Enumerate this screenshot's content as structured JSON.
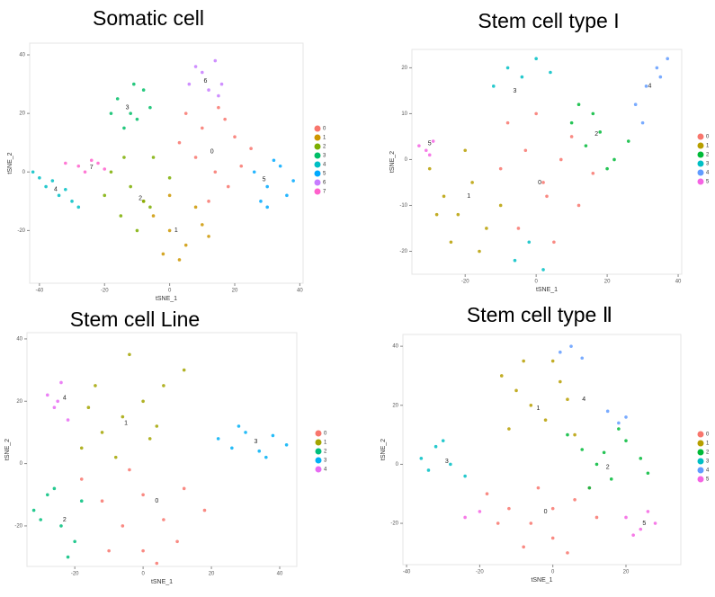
{
  "chart_data": [
    {
      "type": "scatter",
      "title": "Somatic cell",
      "x_label": "tSNE_1",
      "y_label": "tSNE_2",
      "xlim": [
        -43,
        41
      ],
      "ylim": [
        -38,
        44
      ],
      "xticks": [
        -40,
        -20,
        0,
        20,
        40
      ],
      "yticks": [
        -20,
        0,
        20,
        40
      ],
      "legend": "right",
      "series": [
        {
          "name": "0",
          "color": "#F8766D",
          "x": [
            5,
            10,
            15,
            20,
            25,
            8,
            14,
            18,
            22,
            3,
            12,
            17
          ],
          "y": [
            20,
            15,
            22,
            12,
            8,
            5,
            0,
            -5,
            2,
            10,
            -10,
            18
          ]
        },
        {
          "name": "1",
          "color": "#CD9600",
          "x": [
            -5,
            0,
            5,
            10,
            -8,
            3,
            8,
            -2,
            12,
            0
          ],
          "y": [
            -15,
            -20,
            -25,
            -18,
            -10,
            -30,
            -12,
            -28,
            -22,
            -8
          ]
        },
        {
          "name": "2",
          "color": "#7CAE00",
          "x": [
            -18,
            -12,
            -8,
            -15,
            -5,
            -10,
            -20,
            0,
            -14,
            -6
          ],
          "y": [
            0,
            -5,
            -10,
            -15,
            5,
            -20,
            -8,
            -2,
            5,
            -12
          ]
        },
        {
          "name": "3",
          "color": "#00BE67",
          "x": [
            -16,
            -12,
            -8,
            -14,
            -10,
            -6,
            -18,
            -11
          ],
          "y": [
            25,
            20,
            28,
            15,
            18,
            22,
            20,
            30
          ]
        },
        {
          "name": "4",
          "color": "#00BFC4",
          "x": [
            -42,
            -38,
            -34,
            -30,
            -36,
            -40,
            -32,
            -28
          ],
          "y": [
            0,
            -5,
            -8,
            -10,
            -3,
            -2,
            -6,
            -12
          ]
        },
        {
          "name": "5",
          "color": "#00A9FF",
          "x": [
            26,
            30,
            34,
            36,
            28,
            32,
            38,
            30
          ],
          "y": [
            0,
            -5,
            2,
            -8,
            -10,
            4,
            -3,
            -12
          ]
        },
        {
          "name": "6",
          "color": "#C77CFF",
          "x": [
            6,
            10,
            14,
            16,
            12,
            8,
            15
          ],
          "y": [
            30,
            34,
            38,
            30,
            28,
            36,
            26
          ]
        },
        {
          "name": "7",
          "color": "#FF61CC",
          "x": [
            -32,
            -28,
            -24,
            -20,
            -26,
            -22
          ],
          "y": [
            3,
            2,
            4,
            1,
            0,
            3
          ]
        }
      ],
      "annotations": [
        {
          "text": "0",
          "x": 13,
          "y": 7
        },
        {
          "text": "1",
          "x": 2,
          "y": -20
        },
        {
          "text": "2",
          "x": -9,
          "y": -9
        },
        {
          "text": "3",
          "x": -13,
          "y": 22
        },
        {
          "text": "4",
          "x": -35,
          "y": -6
        },
        {
          "text": "5",
          "x": 29,
          "y": -2.5
        },
        {
          "text": "6",
          "x": 11,
          "y": 31
        },
        {
          "text": "7",
          "x": -24,
          "y": 1.5
        }
      ]
    },
    {
      "type": "scatter",
      "title": "Stem cell type I",
      "x_label": "tSNE_1",
      "y_label": "tSNE_2",
      "xlim": [
        -35,
        41
      ],
      "ylim": [
        -25,
        24
      ],
      "xticks": [
        -20,
        0,
        20,
        40
      ],
      "yticks": [
        -20,
        -10,
        0,
        10,
        20
      ],
      "legend": "right",
      "series": [
        {
          "name": "0",
          "color": "#F8766D",
          "x": [
            -8,
            -3,
            2,
            7,
            12,
            16,
            -5,
            0,
            5,
            10,
            -10,
            3
          ],
          "y": [
            8,
            2,
            -5,
            0,
            -10,
            -3,
            -15,
            10,
            -18,
            5,
            -2,
            -8
          ]
        },
        {
          "name": "1",
          "color": "#B79F00",
          "x": [
            -30,
            -26,
            -22,
            -18,
            -14,
            -10,
            -24,
            -20,
            -16,
            -28
          ],
          "y": [
            -2,
            -8,
            -12,
            -5,
            -15,
            -10,
            -18,
            2,
            -20,
            -12
          ]
        },
        {
          "name": "2",
          "color": "#00BA38",
          "x": [
            10,
            14,
            18,
            22,
            26,
            16,
            20,
            12
          ],
          "y": [
            8,
            3,
            6,
            0,
            4,
            10,
            -2,
            12
          ]
        },
        {
          "name": "3",
          "color": "#00BFC4",
          "x": [
            -12,
            -8,
            -4,
            0,
            4,
            -6,
            -2,
            2
          ],
          "y": [
            16,
            20,
            18,
            22,
            19,
            -22,
            -18,
            -24
          ]
        },
        {
          "name": "4",
          "color": "#619CFF",
          "x": [
            28,
            31,
            34,
            37,
            30,
            35
          ],
          "y": [
            12,
            16,
            20,
            22,
            8,
            18
          ]
        },
        {
          "name": "5",
          "color": "#F564E3",
          "x": [
            -33,
            -31,
            -29,
            -30
          ],
          "y": [
            3,
            2,
            4,
            1
          ]
        }
      ],
      "annotations": [
        {
          "text": "0",
          "x": 1,
          "y": -5
        },
        {
          "text": "1",
          "x": -19,
          "y": -8
        },
        {
          "text": "2",
          "x": 17,
          "y": 5.5
        },
        {
          "text": "3",
          "x": -6,
          "y": 15
        },
        {
          "text": "4",
          "x": 32,
          "y": 16
        },
        {
          "text": "5",
          "x": -30,
          "y": 3.5
        }
      ]
    },
    {
      "type": "scatter",
      "title": "Stem cell Line",
      "x_label": "tSNE_1",
      "y_label": "tSNE_2",
      "xlim": [
        -34,
        45
      ],
      "ylim": [
        -33,
        42
      ],
      "xticks": [
        -20,
        0,
        20,
        40
      ],
      "yticks": [
        -20,
        0,
        20,
        40
      ],
      "legend": "right",
      "series": [
        {
          "name": "0",
          "color": "#F8766D",
          "x": [
            -18,
            -12,
            -6,
            0,
            6,
            12,
            18,
            -10,
            0,
            10,
            -4,
            4
          ],
          "y": [
            -5,
            -12,
            -20,
            -28,
            -18,
            -8,
            -15,
            -28,
            -10,
            -25,
            -2,
            -32
          ]
        },
        {
          "name": "1",
          "color": "#A3A500",
          "x": [
            -18,
            -12,
            -6,
            0,
            6,
            12,
            -14,
            -4,
            4,
            -8,
            2,
            -16
          ],
          "y": [
            5,
            10,
            15,
            20,
            25,
            30,
            25,
            35,
            12,
            2,
            8,
            18
          ]
        },
        {
          "name": "2",
          "color": "#00BF7D",
          "x": [
            -32,
            -28,
            -24,
            -20,
            -26,
            -22,
            -30,
            -18
          ],
          "y": [
            -15,
            -10,
            -20,
            -25,
            -8,
            -30,
            -18,
            -12
          ]
        },
        {
          "name": "3",
          "color": "#00B0F6",
          "x": [
            22,
            26,
            30,
            34,
            38,
            42,
            28,
            36
          ],
          "y": [
            8,
            5,
            10,
            4,
            9,
            6,
            12,
            2
          ]
        },
        {
          "name": "4",
          "color": "#E76BF3",
          "x": [
            -28,
            -26,
            -24,
            -22,
            -25
          ],
          "y": [
            22,
            18,
            26,
            14,
            20
          ]
        }
      ],
      "annotations": [
        {
          "text": "0",
          "x": 4,
          "y": -12
        },
        {
          "text": "1",
          "x": -5,
          "y": 13
        },
        {
          "text": "2",
          "x": -23,
          "y": -18
        },
        {
          "text": "3",
          "x": 33,
          "y": 7
        },
        {
          "text": "4",
          "x": -23,
          "y": 21
        }
      ]
    },
    {
      "type": "scatter",
      "title": "Stem cell type Ⅱ",
      "x_label": "tSNE_1",
      "y_label": "tSNE_2",
      "xlim": [
        -41,
        35
      ],
      "ylim": [
        -34,
        44
      ],
      "xticks": [
        -40,
        -20,
        0,
        20
      ],
      "yticks": [
        -20,
        0,
        20,
        40
      ],
      "legend": "right",
      "series": [
        {
          "name": "0",
          "color": "#F8766D",
          "x": [
            -18,
            -12,
            -6,
            0,
            6,
            12,
            -15,
            -4,
            4,
            10,
            -8,
            0
          ],
          "y": [
            -10,
            -15,
            -20,
            -25,
            -12,
            -18,
            -20,
            -8,
            -30,
            -8,
            -28,
            -15
          ]
        },
        {
          "name": "1",
          "color": "#B79F00",
          "x": [
            -14,
            -10,
            -6,
            -2,
            2,
            6,
            -8,
            0,
            -12,
            4
          ],
          "y": [
            30,
            25,
            20,
            15,
            28,
            10,
            35,
            35,
            12,
            22
          ]
        },
        {
          "name": "2",
          "color": "#00BA38",
          "x": [
            4,
            8,
            12,
            16,
            20,
            24,
            10,
            18,
            14,
            26
          ],
          "y": [
            10,
            5,
            0,
            -5,
            8,
            2,
            -8,
            12,
            4,
            -3
          ]
        },
        {
          "name": "3",
          "color": "#00BFC4",
          "x": [
            -36,
            -32,
            -28,
            -24,
            -34,
            -30
          ],
          "y": [
            2,
            6,
            0,
            -4,
            -2,
            8
          ]
        },
        {
          "name": "4",
          "color": "#619CFF",
          "x": [
            2,
            5,
            8,
            15,
            18,
            20
          ],
          "y": [
            38,
            40,
            36,
            18,
            14,
            16
          ]
        },
        {
          "name": "5",
          "color": "#F564E3",
          "x": [
            20,
            24,
            28,
            22,
            26,
            -24,
            -20
          ],
          "y": [
            -18,
            -22,
            -20,
            -24,
            -16,
            -18,
            -16
          ]
        }
      ],
      "annotations": [
        {
          "text": "0",
          "x": -2,
          "y": -16
        },
        {
          "text": "1",
          "x": -4,
          "y": 19
        },
        {
          "text": "2",
          "x": 15,
          "y": -1
        },
        {
          "text": "3",
          "x": -29,
          "y": 1
        },
        {
          "text": "4",
          "x": 8.5,
          "y": 22
        },
        {
          "text": "5",
          "x": 25,
          "y": -20
        }
      ]
    }
  ]
}
